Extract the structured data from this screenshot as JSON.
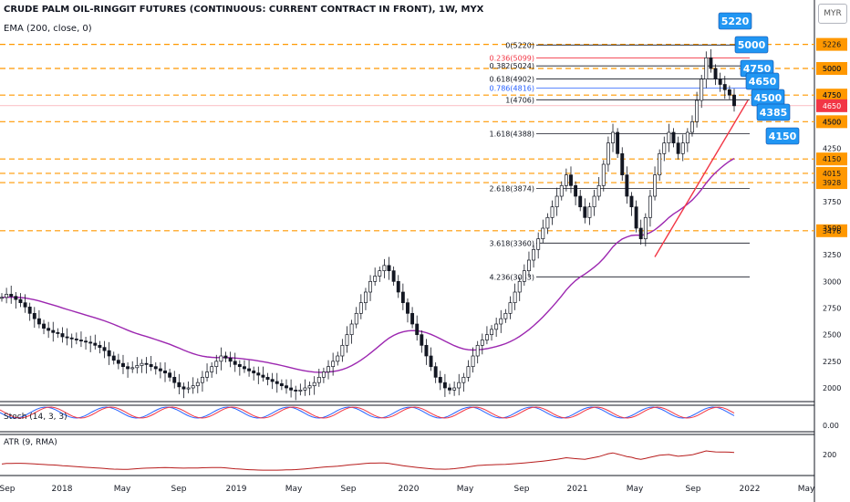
{
  "header": {
    "title": "CRUDE PALM OIL-RINGGIT FUTURES (CONTINUOUS: CURRENT CONTRACT IN FRONT), 1W, MYX",
    "indicator": "EMA (200, close, 0)",
    "currency": "MYR"
  },
  "stoch": {
    "label": "Stoch (14, 3, 3)",
    "axis_label": "0.00"
  },
  "atr": {
    "label": "ATR (9, RMA)",
    "axis_label": "200"
  },
  "chart_data": {
    "type": "candlestick",
    "ylim": [
      1800,
      5600
    ],
    "y_ticks": [
      2000,
      2250,
      2500,
      2750,
      3000,
      3250,
      3500,
      3750,
      4250,
      4500,
      4750,
      5000
    ],
    "x_ticks": [
      "Sep",
      "2018",
      "May",
      "Sep",
      "2019",
      "May",
      "Sep",
      "2020",
      "May",
      "Sep",
      "2021",
      "May",
      "Sep",
      "2022",
      "May"
    ],
    "price_levels": [
      5226,
      5000,
      4750,
      4500,
      4150,
      4015,
      3928,
      3476
    ],
    "current_price": 4650,
    "fibonacci": [
      {
        "label": "0(5220)",
        "value": 5220,
        "color": "#131722"
      },
      {
        "label": "0.236(5099)",
        "value": 5099,
        "color": "#f23645"
      },
      {
        "label": "0.382(5024)",
        "value": 5024,
        "color": "#131722"
      },
      {
        "label": "0.618(4902)",
        "value": 4902,
        "color": "#131722"
      },
      {
        "label": "0.786(4816)",
        "value": 4816,
        "color": "#2962ff"
      },
      {
        "label": "1(4706)",
        "value": 4706,
        "color": "#131722"
      },
      {
        "label": "1.618(4388)",
        "value": 4388,
        "color": "#131722"
      },
      {
        "label": "2.618(3874)",
        "value": 3874,
        "color": "#131722"
      },
      {
        "label": "3.618(3360)",
        "value": 3360,
        "color": "#131722"
      },
      {
        "label": "4.236(3043)",
        "value": 3043,
        "color": "#131722"
      }
    ],
    "callouts": [
      "5220",
      "5000",
      "4750",
      "4650",
      "4500",
      "4385",
      "4150"
    ],
    "colors": {
      "up": "#ffffff",
      "down": "#131722",
      "ema": "#9c27b0",
      "levels": "#ff9800",
      "trend": "#f23645",
      "stoch_k": "#2962ff",
      "stoch_d": "#f23645",
      "atr": "#b71c1c",
      "callout": "#2196f3"
    },
    "weekly_closes": [
      2850,
      2880,
      2860,
      2830,
      2800,
      2760,
      2700,
      2650,
      2600,
      2560,
      2540,
      2520,
      2510,
      2480,
      2470,
      2460,
      2450,
      2440,
      2430,
      2420,
      2400,
      2380,
      2350,
      2300,
      2260,
      2230,
      2200,
      2180,
      2190,
      2210,
      2230,
      2220,
      2200,
      2180,
      2160,
      2140,
      2100,
      2050,
      2010,
      1990,
      2000,
      2020,
      2050,
      2100,
      2150,
      2200,
      2250,
      2300,
      2280,
      2250,
      2220,
      2200,
      2180,
      2160,
      2140,
      2120,
      2100,
      2080,
      2060,
      2040,
      2020,
      2000,
      1980,
      1970,
      1980,
      2000,
      2020,
      2050,
      2100,
      2150,
      2200,
      2250,
      2300,
      2400,
      2500,
      2600,
      2700,
      2800,
      2900,
      3000,
      3050,
      3100,
      3150,
      3100,
      3000,
      2900,
      2800,
      2700,
      2600,
      2500,
      2400,
      2300,
      2200,
      2100,
      2050,
      2000,
      1980,
      2000,
      2050,
      2100,
      2200,
      2300,
      2400,
      2450,
      2500,
      2550,
      2600,
      2650,
      2700,
      2800,
      2900,
      3000,
      3100,
      3200,
      3300,
      3400,
      3500,
      3600,
      3700,
      3800,
      3900,
      4000,
      3900,
      3800,
      3700,
      3600,
      3700,
      3800,
      3900,
      4100,
      4300,
      4400,
      4200,
      4000,
      3800,
      3700,
      3500,
      3400,
      3600,
      3800,
      4000,
      4200,
      4300,
      4400,
      4300,
      4200,
      4300,
      4400,
      4500,
      4700,
      4900,
      5100,
      5000,
      4900,
      4850,
      4800,
      4750,
      4650
    ]
  }
}
